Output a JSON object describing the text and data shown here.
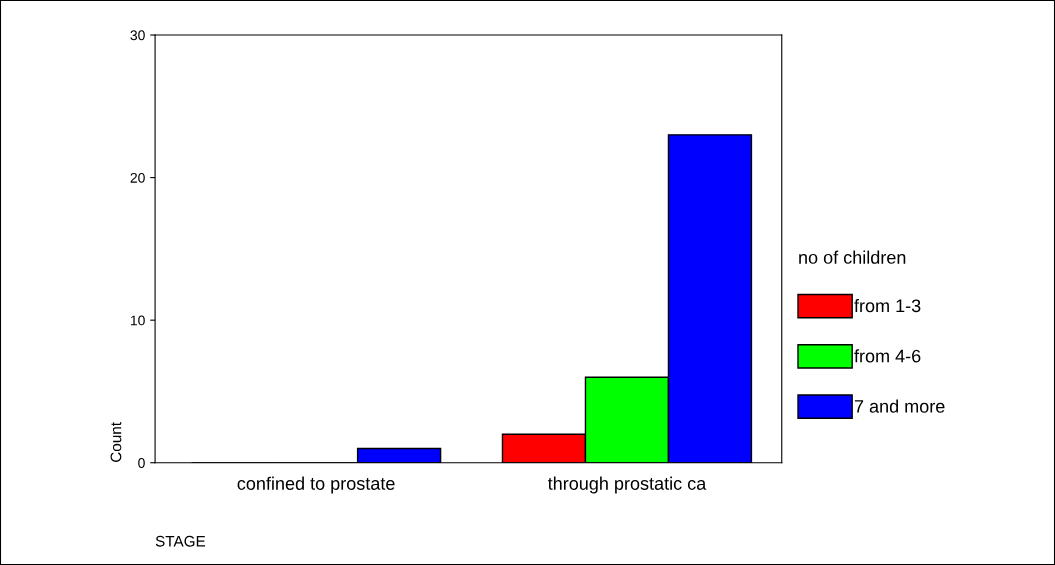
{
  "chart_data": {
    "type": "bar",
    "xlabel": "STAGE",
    "ylabel": "Count",
    "legend_title": "no of children",
    "categories": [
      "confined to prostate",
      "through prostatic ca"
    ],
    "series": [
      {
        "name": "from 1-3",
        "color": "#ff0000",
        "values": [
          0,
          2
        ]
      },
      {
        "name": "from 4-6",
        "color": "#00ff00",
        "values": [
          0,
          6
        ]
      },
      {
        "name": "7 and more",
        "color": "#0000ff",
        "values": [
          1,
          23
        ]
      }
    ],
    "ylim": [
      0,
      30
    ],
    "yticks": [
      0,
      10,
      20,
      30
    ],
    "grid": false,
    "legend": "right"
  }
}
